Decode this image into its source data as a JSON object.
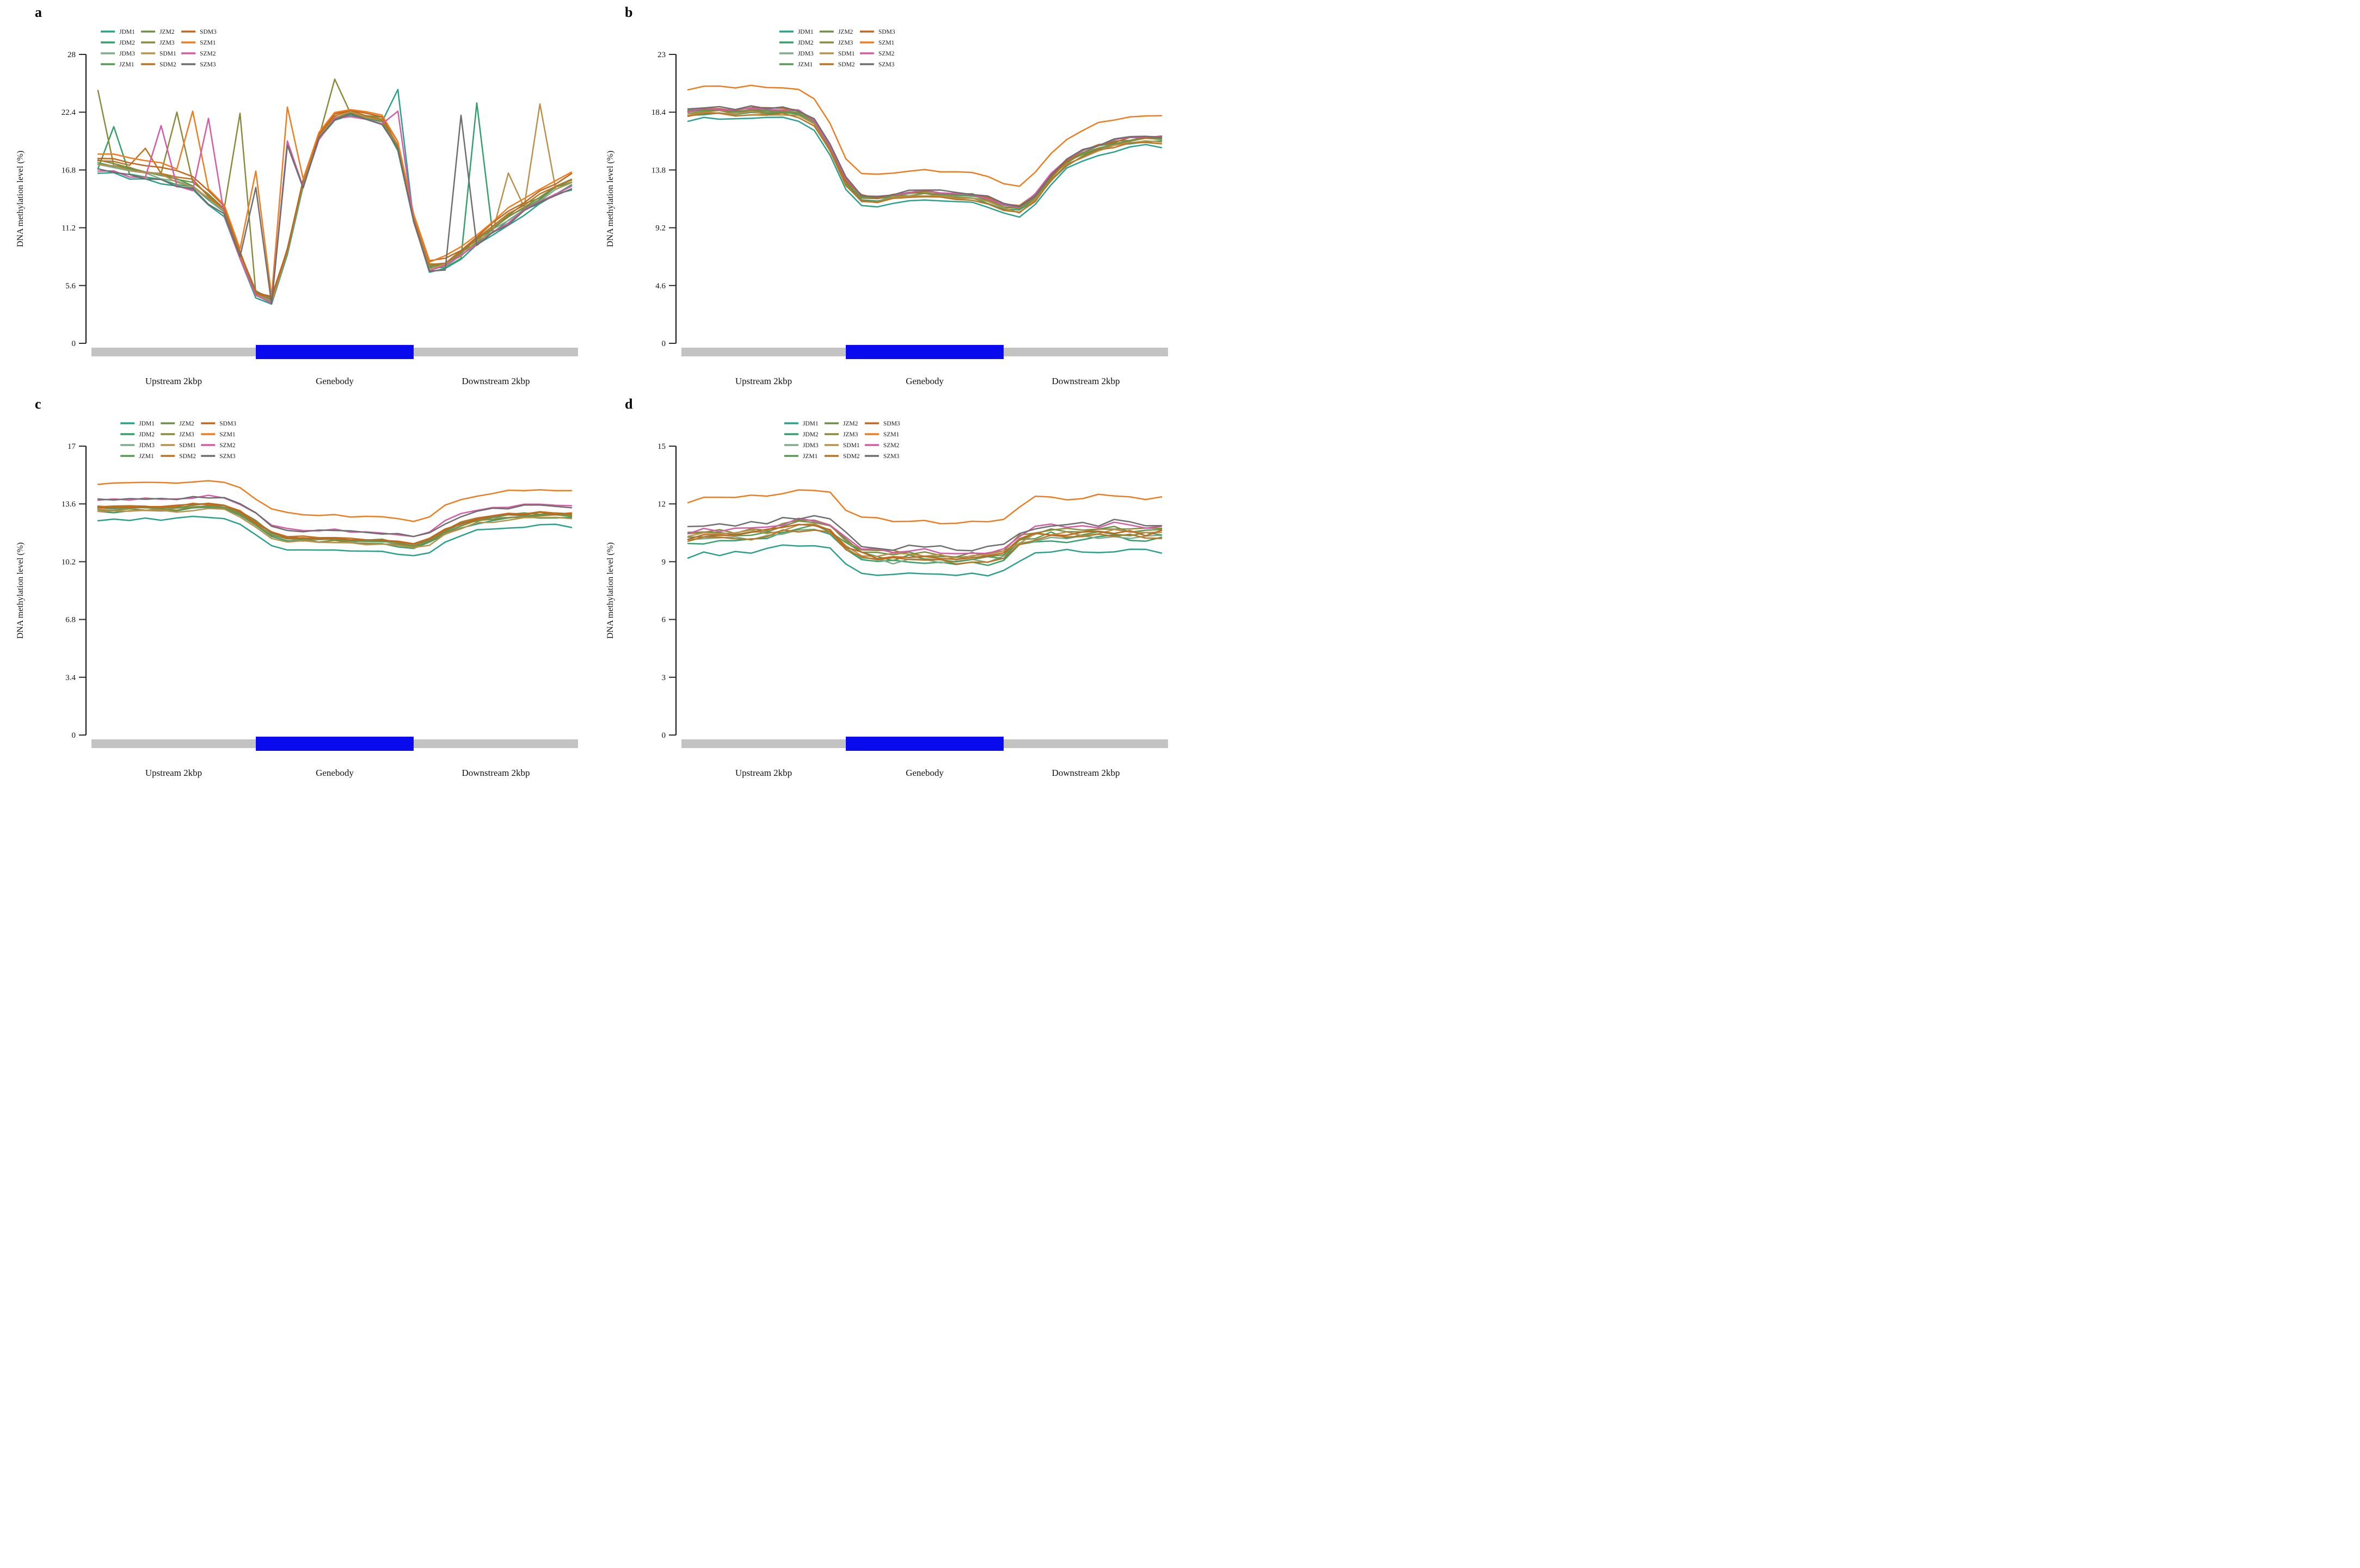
{
  "figure_ylabel": "DNA methylation level (%)",
  "x_region_labels": [
    "Upstream 2kbp",
    "Genebody",
    "Downstream 2kbp"
  ],
  "legend_names": [
    "JDM1",
    "JDM2",
    "JDM3",
    "JZM1",
    "JZM2",
    "JZM3",
    "SDM1",
    "SDM2",
    "SDM3",
    "SZM1",
    "SZM2",
    "SZM3"
  ],
  "colors": {
    "JDM1": "#29a08b",
    "JDM2": "#33a06c",
    "JDM3": "#7bab8b",
    "JZM1": "#579a57",
    "JZM2": "#6f8f49",
    "JZM3": "#8a8a3a",
    "SDM1": "#b9914a",
    "SDM2": "#bb7423",
    "SDM3": "#c2651d",
    "SZM1": "#ee7c20",
    "SZM2": "#d45ba6",
    "SZM3": "#6e6e6e",
    "axis": "#2b2b2b",
    "bar_gray": "#c3c3c3",
    "bar_blue": "#0a0aee"
  },
  "chart_data": [
    {
      "type": "line",
      "panel_label": "a",
      "ylabel": "DNA methylation level (%)",
      "ylim": [
        0,
        28
      ],
      "yticks": [
        0,
        5.6,
        11.2,
        16.8,
        22.4,
        28
      ],
      "x_regions": [
        "Upstream 2kbp",
        "Genebody",
        "Downstream 2kbp"
      ],
      "n_points": 31,
      "genebody_span_bins": [
        10,
        20
      ],
      "bar_gray": "#c3c3c3",
      "bar_blue": "#0a0aee",
      "legend_x_frac": 0.03,
      "noise": 0.22,
      "base": [
        17.3,
        17.0,
        16.7,
        16.5,
        16.2,
        15.8,
        15.3,
        14.0,
        12.8,
        8.6,
        4.8,
        4.15,
        9.0,
        15.5,
        20.0,
        21.8,
        22.3,
        22.0,
        21.6,
        19.0,
        12.0,
        7.4,
        7.6,
        8.6,
        9.8,
        11.0,
        12.1,
        13.1,
        14.0,
        14.9,
        15.6
      ],
      "spread": [
        1,
        1,
        1,
        1,
        1,
        1,
        0.9,
        0.8,
        0.6,
        0.45,
        0.4,
        0.35,
        0.4,
        0.45,
        0.45,
        0.45,
        0.45,
        0.45,
        0.45,
        0.5,
        0.5,
        0.55,
        0.6,
        0.65,
        0.7,
        0.75,
        0.8,
        0.85,
        0.85,
        0.9,
        0.9
      ],
      "series": [
        {
          "name": "JDM1",
          "color": "#29a08b",
          "offset": -0.6,
          "spikes": {
            "19": 24.6
          }
        },
        {
          "name": "JDM2",
          "color": "#33a06c",
          "offset": -0.3,
          "spikes": {
            "1": 21.0,
            "24": 23.3
          }
        },
        {
          "name": "JDM3",
          "color": "#7bab8b",
          "offset": -0.1
        },
        {
          "name": "JZM1",
          "color": "#579a57",
          "offset": 0.1
        },
        {
          "name": "JZM2",
          "color": "#6f8f49",
          "offset": 0.3
        },
        {
          "name": "JZM3",
          "color": "#8a8a3a",
          "offset": 0.2,
          "spikes": {
            "0": 24.5,
            "5": 22.4,
            "9": 22.3,
            "15": 25.6
          }
        },
        {
          "name": "SDM1",
          "color": "#b9914a",
          "offset": 0.0,
          "spikes": {
            "26": 16.5,
            "28": 23.2
          }
        },
        {
          "name": "SDM2",
          "color": "#bb7423",
          "offset": 0.45,
          "spikes": {
            "3": 18.9
          }
        },
        {
          "name": "SDM3",
          "color": "#c2651d",
          "offset": 0.75
        },
        {
          "name": "SZM1",
          "color": "#ee7c20",
          "offset": 1.15,
          "spikes": {
            "6": 22.5,
            "10": 16.7,
            "12": 22.9
          }
        },
        {
          "name": "SZM2",
          "color": "#d45ba6",
          "offset": -0.4,
          "spikes": {
            "4": 21.1,
            "7": 21.8,
            "12": 19.6,
            "19": 22.5
          }
        },
        {
          "name": "SZM3",
          "color": "#6e6e6e",
          "offset": -0.5,
          "spikes": {
            "10": 15.1,
            "12": 19.2,
            "23": 22.1
          }
        }
      ]
    },
    {
      "type": "line",
      "panel_label": "b",
      "ylabel": "DNA methylation level (%)",
      "ylim": [
        0,
        23
      ],
      "yticks": [
        0,
        4.6,
        9.2,
        13.8,
        18.4,
        23
      ],
      "x_regions": [
        "Upstream 2kbp",
        "Genebody",
        "Downstream 2kbp"
      ],
      "n_points": 31,
      "genebody_span_bins": [
        10,
        20
      ],
      "bar_gray": "#c3c3c3",
      "bar_blue": "#0a0aee",
      "legend_x_frac": 0.21,
      "noise": 0.13,
      "base": [
        18.35,
        18.45,
        18.5,
        18.4,
        18.55,
        18.5,
        18.45,
        18.3,
        17.6,
        15.6,
        12.9,
        11.6,
        11.5,
        11.7,
        11.85,
        11.9,
        11.85,
        11.8,
        11.7,
        11.4,
        10.85,
        10.7,
        11.6,
        13.2,
        14.4,
        15.1,
        15.6,
        15.9,
        16.15,
        16.3,
        16.25
      ],
      "series": [
        {
          "name": "JDM1",
          "color": "#29a08b",
          "offset": -0.55
        },
        {
          "name": "JDM2",
          "color": "#33a06c",
          "offset": -0.15
        },
        {
          "name": "JDM3",
          "color": "#7bab8b",
          "offset": 0.0
        },
        {
          "name": "JZM1",
          "color": "#579a57",
          "offset": 0.05
        },
        {
          "name": "JZM2",
          "color": "#6f8f49",
          "offset": 0.1
        },
        {
          "name": "JZM3",
          "color": "#8a8a3a",
          "offset": -0.05
        },
        {
          "name": "SDM1",
          "color": "#b9914a",
          "offset": -0.2
        },
        {
          "name": "SDM2",
          "color": "#bb7423",
          "offset": -0.25
        },
        {
          "name": "SDM3",
          "color": "#c2651d",
          "offset": 0.15
        },
        {
          "name": "SZM1",
          "color": "#ee7c20",
          "offset": 1.9
        },
        {
          "name": "SZM2",
          "color": "#d45ba6",
          "offset": 0.2
        },
        {
          "name": "SZM3",
          "color": "#6e6e6e",
          "offset": 0.25
        }
      ]
    },
    {
      "type": "line",
      "panel_label": "c",
      "ylabel": "DNA methylation level (%)",
      "ylim": [
        0,
        17
      ],
      "yticks": [
        0,
        3.4,
        6.8,
        10.2,
        13.6,
        17
      ],
      "x_regions": [
        "Upstream 2kbp",
        "Genebody",
        "Downstream 2kbp"
      ],
      "n_points": 31,
      "genebody_span_bins": [
        10,
        20
      ],
      "bar_gray": "#c3c3c3",
      "bar_blue": "#0a0aee",
      "legend_x_frac": 0.07,
      "noise": 0.09,
      "base": [
        13.35,
        13.3,
        13.35,
        13.4,
        13.35,
        13.4,
        13.45,
        13.5,
        13.45,
        13.1,
        12.5,
        11.85,
        11.6,
        11.55,
        11.5,
        11.5,
        11.45,
        11.45,
        11.4,
        11.3,
        11.15,
        11.45,
        12.0,
        12.4,
        12.65,
        12.8,
        12.9,
        12.95,
        13.0,
        13.0,
        12.95
      ],
      "series": [
        {
          "name": "JDM1",
          "color": "#29a08b",
          "offset": -0.65
        },
        {
          "name": "JDM2",
          "color": "#33a06c",
          "offset": -0.15
        },
        {
          "name": "JDM3",
          "color": "#7bab8b",
          "offset": -0.05
        },
        {
          "name": "JZM1",
          "color": "#579a57",
          "offset": 0.0
        },
        {
          "name": "JZM2",
          "color": "#6f8f49",
          "offset": 0.05
        },
        {
          "name": "JZM3",
          "color": "#8a8a3a",
          "offset": -0.1
        },
        {
          "name": "SDM1",
          "color": "#b9914a",
          "offset": -0.2
        },
        {
          "name": "SDM2",
          "color": "#bb7423",
          "offset": 0.1
        },
        {
          "name": "SDM3",
          "color": "#c2651d",
          "offset": 0.05
        },
        {
          "name": "SZM1",
          "color": "#ee7c20",
          "offset": 1.45
        },
        {
          "name": "SZM2",
          "color": "#d45ba6",
          "offset": 0.55
        },
        {
          "name": "SZM3",
          "color": "#6e6e6e",
          "offset": 0.5
        }
      ]
    },
    {
      "type": "line",
      "panel_label": "d",
      "ylabel": "DNA methylation level (%)",
      "ylim": [
        0,
        15
      ],
      "yticks": [
        0,
        3,
        6,
        9,
        12,
        15
      ],
      "x_regions": [
        "Upstream 2kbp",
        "Genebody",
        "Downstream 2kbp"
      ],
      "n_points": 31,
      "genebody_span_bins": [
        10,
        20
      ],
      "bar_gray": "#c3c3c3",
      "bar_blue": "#0a0aee",
      "legend_x_frac": 0.22,
      "noise": 0.16,
      "base": [
        10.35,
        10.4,
        10.45,
        10.5,
        10.55,
        10.65,
        10.75,
        10.9,
        10.95,
        10.8,
        10.0,
        9.5,
        9.4,
        9.35,
        9.35,
        9.3,
        9.3,
        9.25,
        9.3,
        9.3,
        9.45,
        10.15,
        10.45,
        10.55,
        10.5,
        10.55,
        10.6,
        10.65,
        10.6,
        10.55,
        10.6
      ],
      "series": [
        {
          "name": "JDM1",
          "color": "#29a08b",
          "offset": -1.0
        },
        {
          "name": "JDM2",
          "color": "#33a06c",
          "offset": -0.35
        },
        {
          "name": "JDM3",
          "color": "#7bab8b",
          "offset": -0.3
        },
        {
          "name": "JZM1",
          "color": "#579a57",
          "offset": -0.15
        },
        {
          "name": "JZM2",
          "color": "#6f8f49",
          "offset": 0.05
        },
        {
          "name": "JZM3",
          "color": "#8a8a3a",
          "offset": 0.1
        },
        {
          "name": "SDM1",
          "color": "#b9914a",
          "offset": -0.05
        },
        {
          "name": "SDM2",
          "color": "#bb7423",
          "offset": -0.25
        },
        {
          "name": "SDM3",
          "color": "#c2651d",
          "offset": -0.1
        },
        {
          "name": "SZM1",
          "color": "#ee7c20",
          "offset": 1.8
        },
        {
          "name": "SZM2",
          "color": "#d45ba6",
          "offset": 0.25
        },
        {
          "name": "SZM3",
          "color": "#6e6e6e",
          "offset": 0.4
        }
      ]
    }
  ]
}
